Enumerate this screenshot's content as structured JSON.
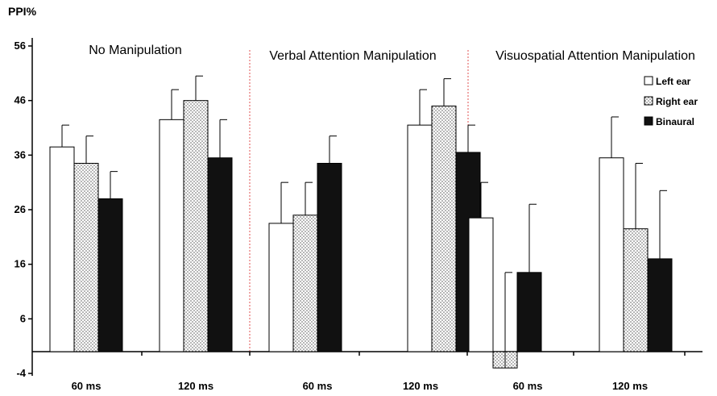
{
  "chart_data": {
    "type": "bar",
    "ylabel": "PPI%",
    "yticks": [
      -4,
      6,
      16,
      26,
      36,
      46,
      56
    ],
    "ylim": [
      -4,
      58
    ],
    "groups": [
      {
        "title": "No Manipulation",
        "categories": [
          "60 ms",
          "120 ms"
        ],
        "series": [
          {
            "name": "Left ear",
            "values": [
              37.5,
              42.5
            ],
            "errors": [
              4.0,
              5.5
            ]
          },
          {
            "name": "Right ear",
            "values": [
              34.5,
              46.0
            ],
            "errors": [
              5.0,
              4.5
            ]
          },
          {
            "name": "Binaural",
            "values": [
              28.0,
              35.5
            ],
            "errors": [
              5.0,
              7.0
            ]
          }
        ]
      },
      {
        "title": "Verbal Attention Manipulation",
        "categories": [
          "60 ms",
          "120 ms"
        ],
        "series": [
          {
            "name": "Left ear",
            "values": [
              23.5,
              41.5
            ],
            "errors": [
              7.5,
              6.5
            ]
          },
          {
            "name": "Right ear",
            "values": [
              25.0,
              45.0
            ],
            "errors": [
              6.0,
              5.0
            ]
          },
          {
            "name": "Binaural",
            "values": [
              34.5,
              36.5
            ],
            "errors": [
              5.0,
              5.0
            ]
          }
        ]
      },
      {
        "title": "Visuospatial  Attention Manipulation",
        "categories": [
          "60 ms",
          "120 ms"
        ],
        "series": [
          {
            "name": "Left ear",
            "values": [
              24.5,
              35.5
            ],
            "errors": [
              6.5,
              7.5
            ]
          },
          {
            "name": "Right ear",
            "values": [
              -3.0,
              22.5
            ],
            "errors": [
              17.5,
              12.0
            ]
          },
          {
            "name": "Binaural",
            "values": [
              14.5,
              17.0
            ],
            "errors": [
              12.5,
              12.5
            ]
          }
        ]
      }
    ],
    "legend": {
      "placement": "top-right",
      "items": [
        {
          "name": "Left ear",
          "fill": "#ffffff"
        },
        {
          "name": "Right ear",
          "fill": "dotted"
        },
        {
          "name": "Binaural",
          "fill": "#111111"
        }
      ]
    },
    "separator_color": "#e05050",
    "grid": false
  }
}
